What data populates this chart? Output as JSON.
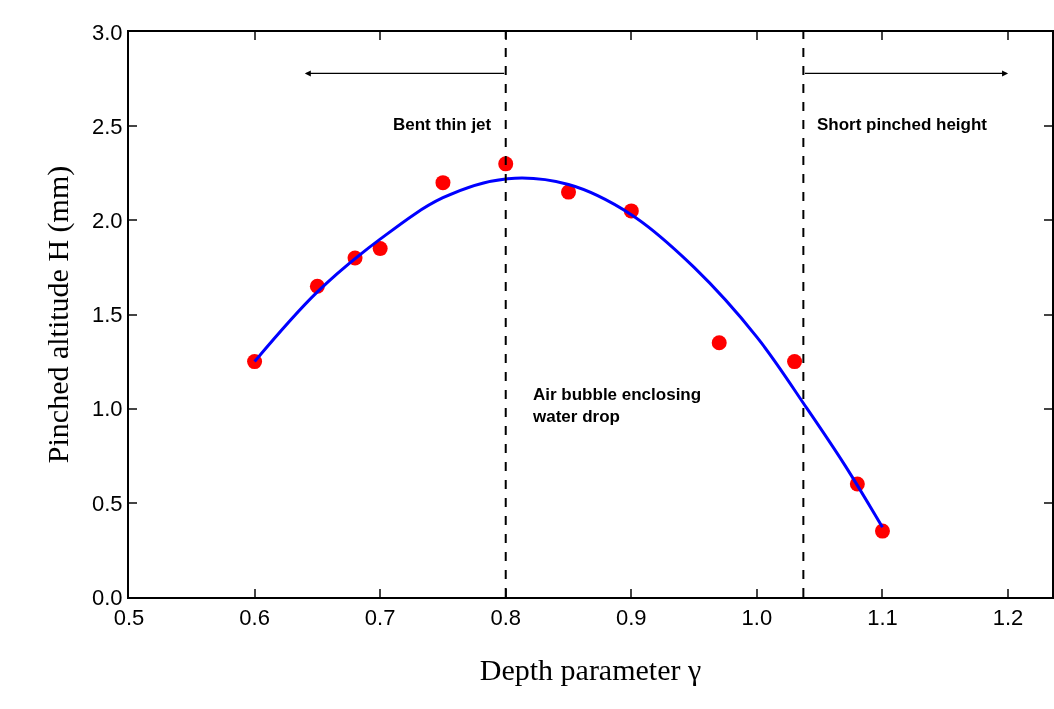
{
  "chart_data": {
    "type": "scatter",
    "xlabel": "Depth parameter γ",
    "ylabel": "Pinched altitude H (mm)",
    "xlim": [
      0.5,
      1.235
    ],
    "xticks": [
      0.5,
      0.6,
      0.7,
      0.8,
      0.9,
      {
        "value": 1.0,
        "label": "1.0"
      },
      1.1,
      1.2
    ],
    "ylim": [
      0,
      3
    ],
    "yticks": [
      {
        "value": 0,
        "label": "0.0"
      },
      0.5,
      {
        "value": 1,
        "label": "1.0"
      },
      1.5,
      {
        "value": 2,
        "label": "2.0"
      },
      2.5,
      {
        "value": 3,
        "label": "3.0"
      }
    ],
    "grid": false,
    "series": [
      {
        "marker": "circle",
        "color": "#ff0000",
        "x": [
          0.6,
          0.65,
          0.68,
          0.7,
          0.75,
          0.8,
          0.85,
          0.9,
          0.97,
          1.03,
          1.08,
          1.1
        ],
        "values": [
          1.25,
          1.65,
          1.8,
          1.85,
          2.2,
          2.3,
          2.15,
          2.05,
          1.35,
          1.25,
          0.6,
          0.35
        ]
      },
      {
        "type": "line",
        "marker": "none",
        "line_style": "solid",
        "color": "#0000ff",
        "x": [
          0.6,
          0.65,
          0.7,
          0.75,
          0.8,
          0.85,
          0.9,
          0.95,
          1.0,
          1.04,
          1.07,
          1.1
        ],
        "values": [
          1.25,
          1.62,
          1.9,
          2.12,
          2.22,
          2.19,
          2.03,
          1.75,
          1.38,
          1.0,
          0.7,
          0.37
        ]
      }
    ],
    "ref_lines": [
      {
        "axis": "x",
        "value": 0.8,
        "color": "#000000",
        "line_style": "dashed"
      },
      {
        "axis": "x",
        "value": 1.037,
        "color": "#000000",
        "line_style": "dashed"
      }
    ],
    "annotations": [
      "Bent thin jet",
      "Short pinched height",
      "Air bubble enclosing water drop"
    ]
  }
}
